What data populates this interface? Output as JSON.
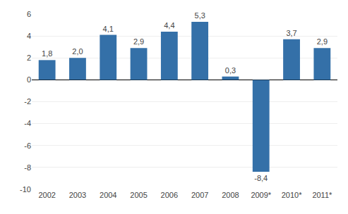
{
  "chart_data": {
    "type": "bar",
    "categories": [
      "2002",
      "2003",
      "2004",
      "2005",
      "2006",
      "2007",
      "2008",
      "2009*",
      "2010*",
      "2011*"
    ],
    "values": [
      1.8,
      2.0,
      4.1,
      2.9,
      4.4,
      5.3,
      0.3,
      -8.4,
      3.7,
      2.9
    ],
    "value_labels": [
      "1,8",
      "2,0",
      "4,1",
      "2,9",
      "4,4",
      "5,3",
      "0,3",
      "-8,4",
      "3,7",
      "2,9"
    ],
    "data_labels": true,
    "color": "#3470A8",
    "ylim": [
      -10,
      6
    ],
    "yticks": [
      -10,
      -8,
      -6,
      -4,
      -2,
      0,
      2,
      4,
      6
    ],
    "grid": true
  }
}
